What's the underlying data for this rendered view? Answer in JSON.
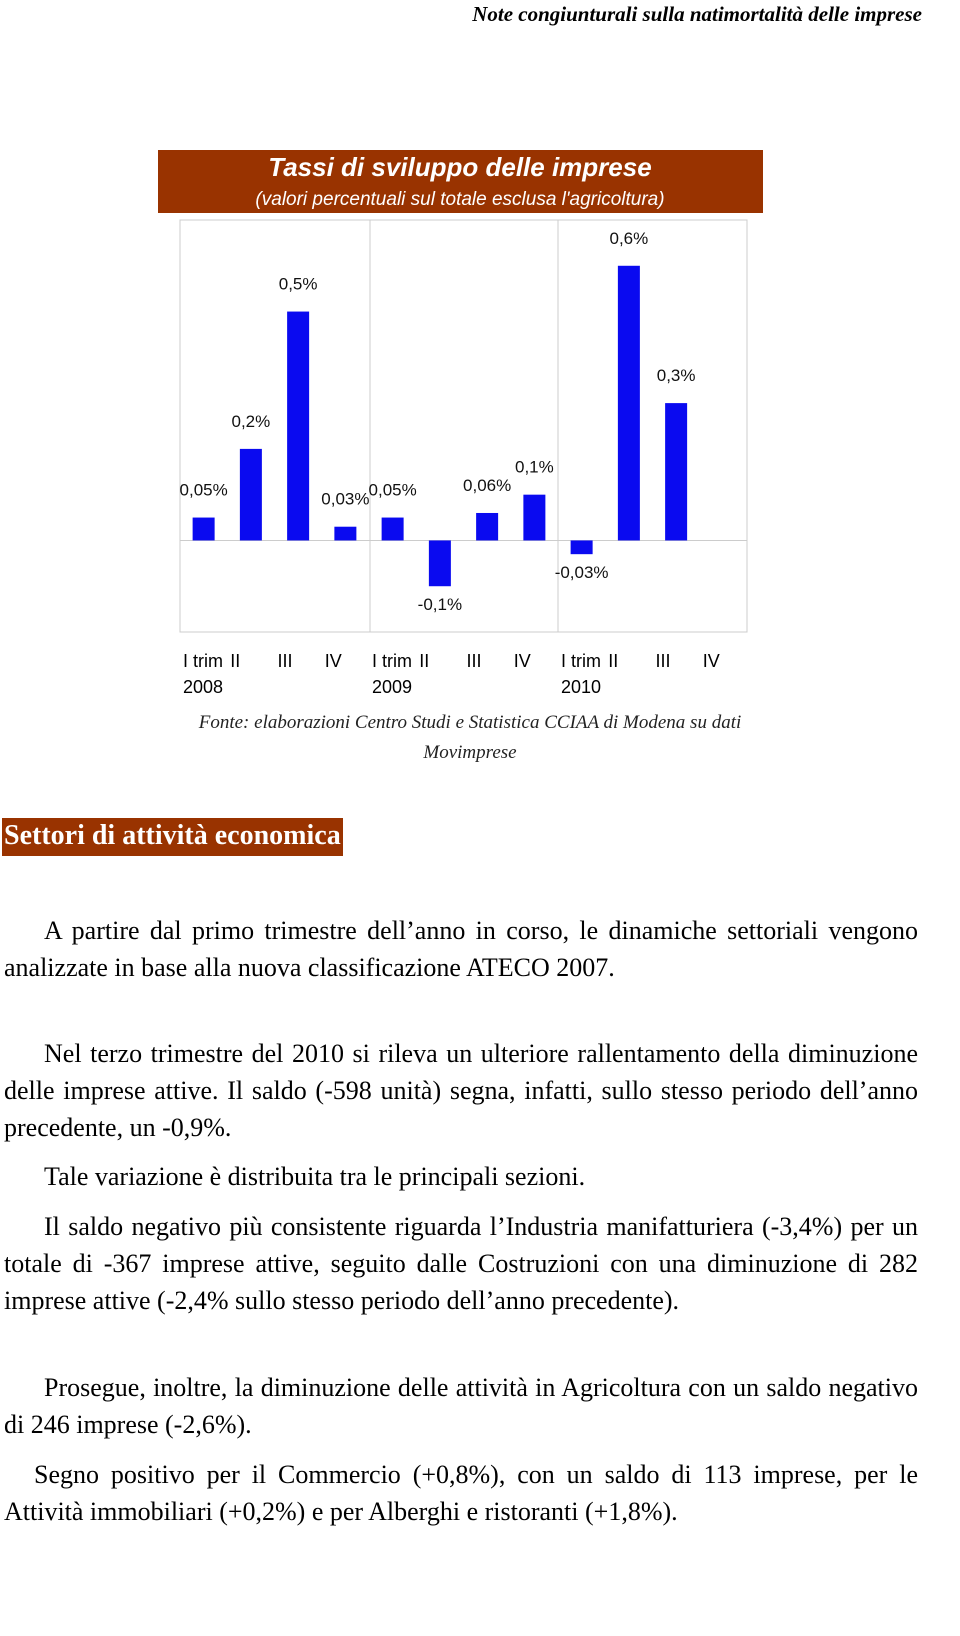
{
  "header": "Note congiunturali sulla natimortalità delle imprese",
  "chart_data": {
    "type": "bar",
    "title": "Tassi di sviluppo delle imprese",
    "subtitle": "(valori percentuali sul totale esclusa l'agricoltura)",
    "categories": [
      "I trim 2008",
      "II",
      "III",
      "IV",
      "I trim 2009",
      "II",
      "III",
      "IV",
      "I trim 2010",
      "II",
      "III",
      "IV"
    ],
    "values": [
      0.05,
      0.2,
      0.5,
      0.03,
      0.05,
      -0.1,
      0.06,
      0.1,
      -0.03,
      0.6,
      0.3,
      null
    ],
    "value_labels": [
      "0,05%",
      "0,2%",
      "0,5%",
      "0,03%",
      "0,05%",
      "-0,1%",
      "0,06%",
      "0,1%",
      "-0,03%",
      "0,6%",
      "0,3%",
      null
    ],
    "color": "#0a0af0",
    "ylim": [
      -0.2,
      0.7
    ],
    "source": "Fonte: elaborazioni Centro Studi e Statistica CCIAA di Modena su dati Movimprese"
  },
  "section_title": "Settori di attività economica",
  "paragraphs": [
    "A partire dal primo trimestre dell’anno in corso, le dinamiche settoriali vengono analizzate in base alla nuova classificazione ATECO 2007.",
    "Nel terzo trimestre del 2010 si rileva un ulteriore rallentamento della diminuzione delle imprese attive. Il saldo (-598 unità) segna, infatti, sullo stesso periodo dell’anno precedente, un -0,9%.",
    "Tale variazione è distribuita tra le principali sezioni.",
    "Il saldo negativo più consistente riguarda l’Industria manifatturiera (-3,4%) per un totale di -367 imprese attive, seguito dalle Costruzioni con una diminuzione di 282 imprese attive (-2,4% sullo stesso periodo dell’anno precedente).",
    "Prosegue, inoltre, la diminuzione delle attività in Agricoltura con un saldo negativo di 246 imprese (-2,6%).",
    "Segno positivo per il Commercio (+0,8%), con un saldo di 113 imprese, per le Attività immobiliari (+0,2%) e per Alberghi e ristoranti (+1,8%)."
  ]
}
